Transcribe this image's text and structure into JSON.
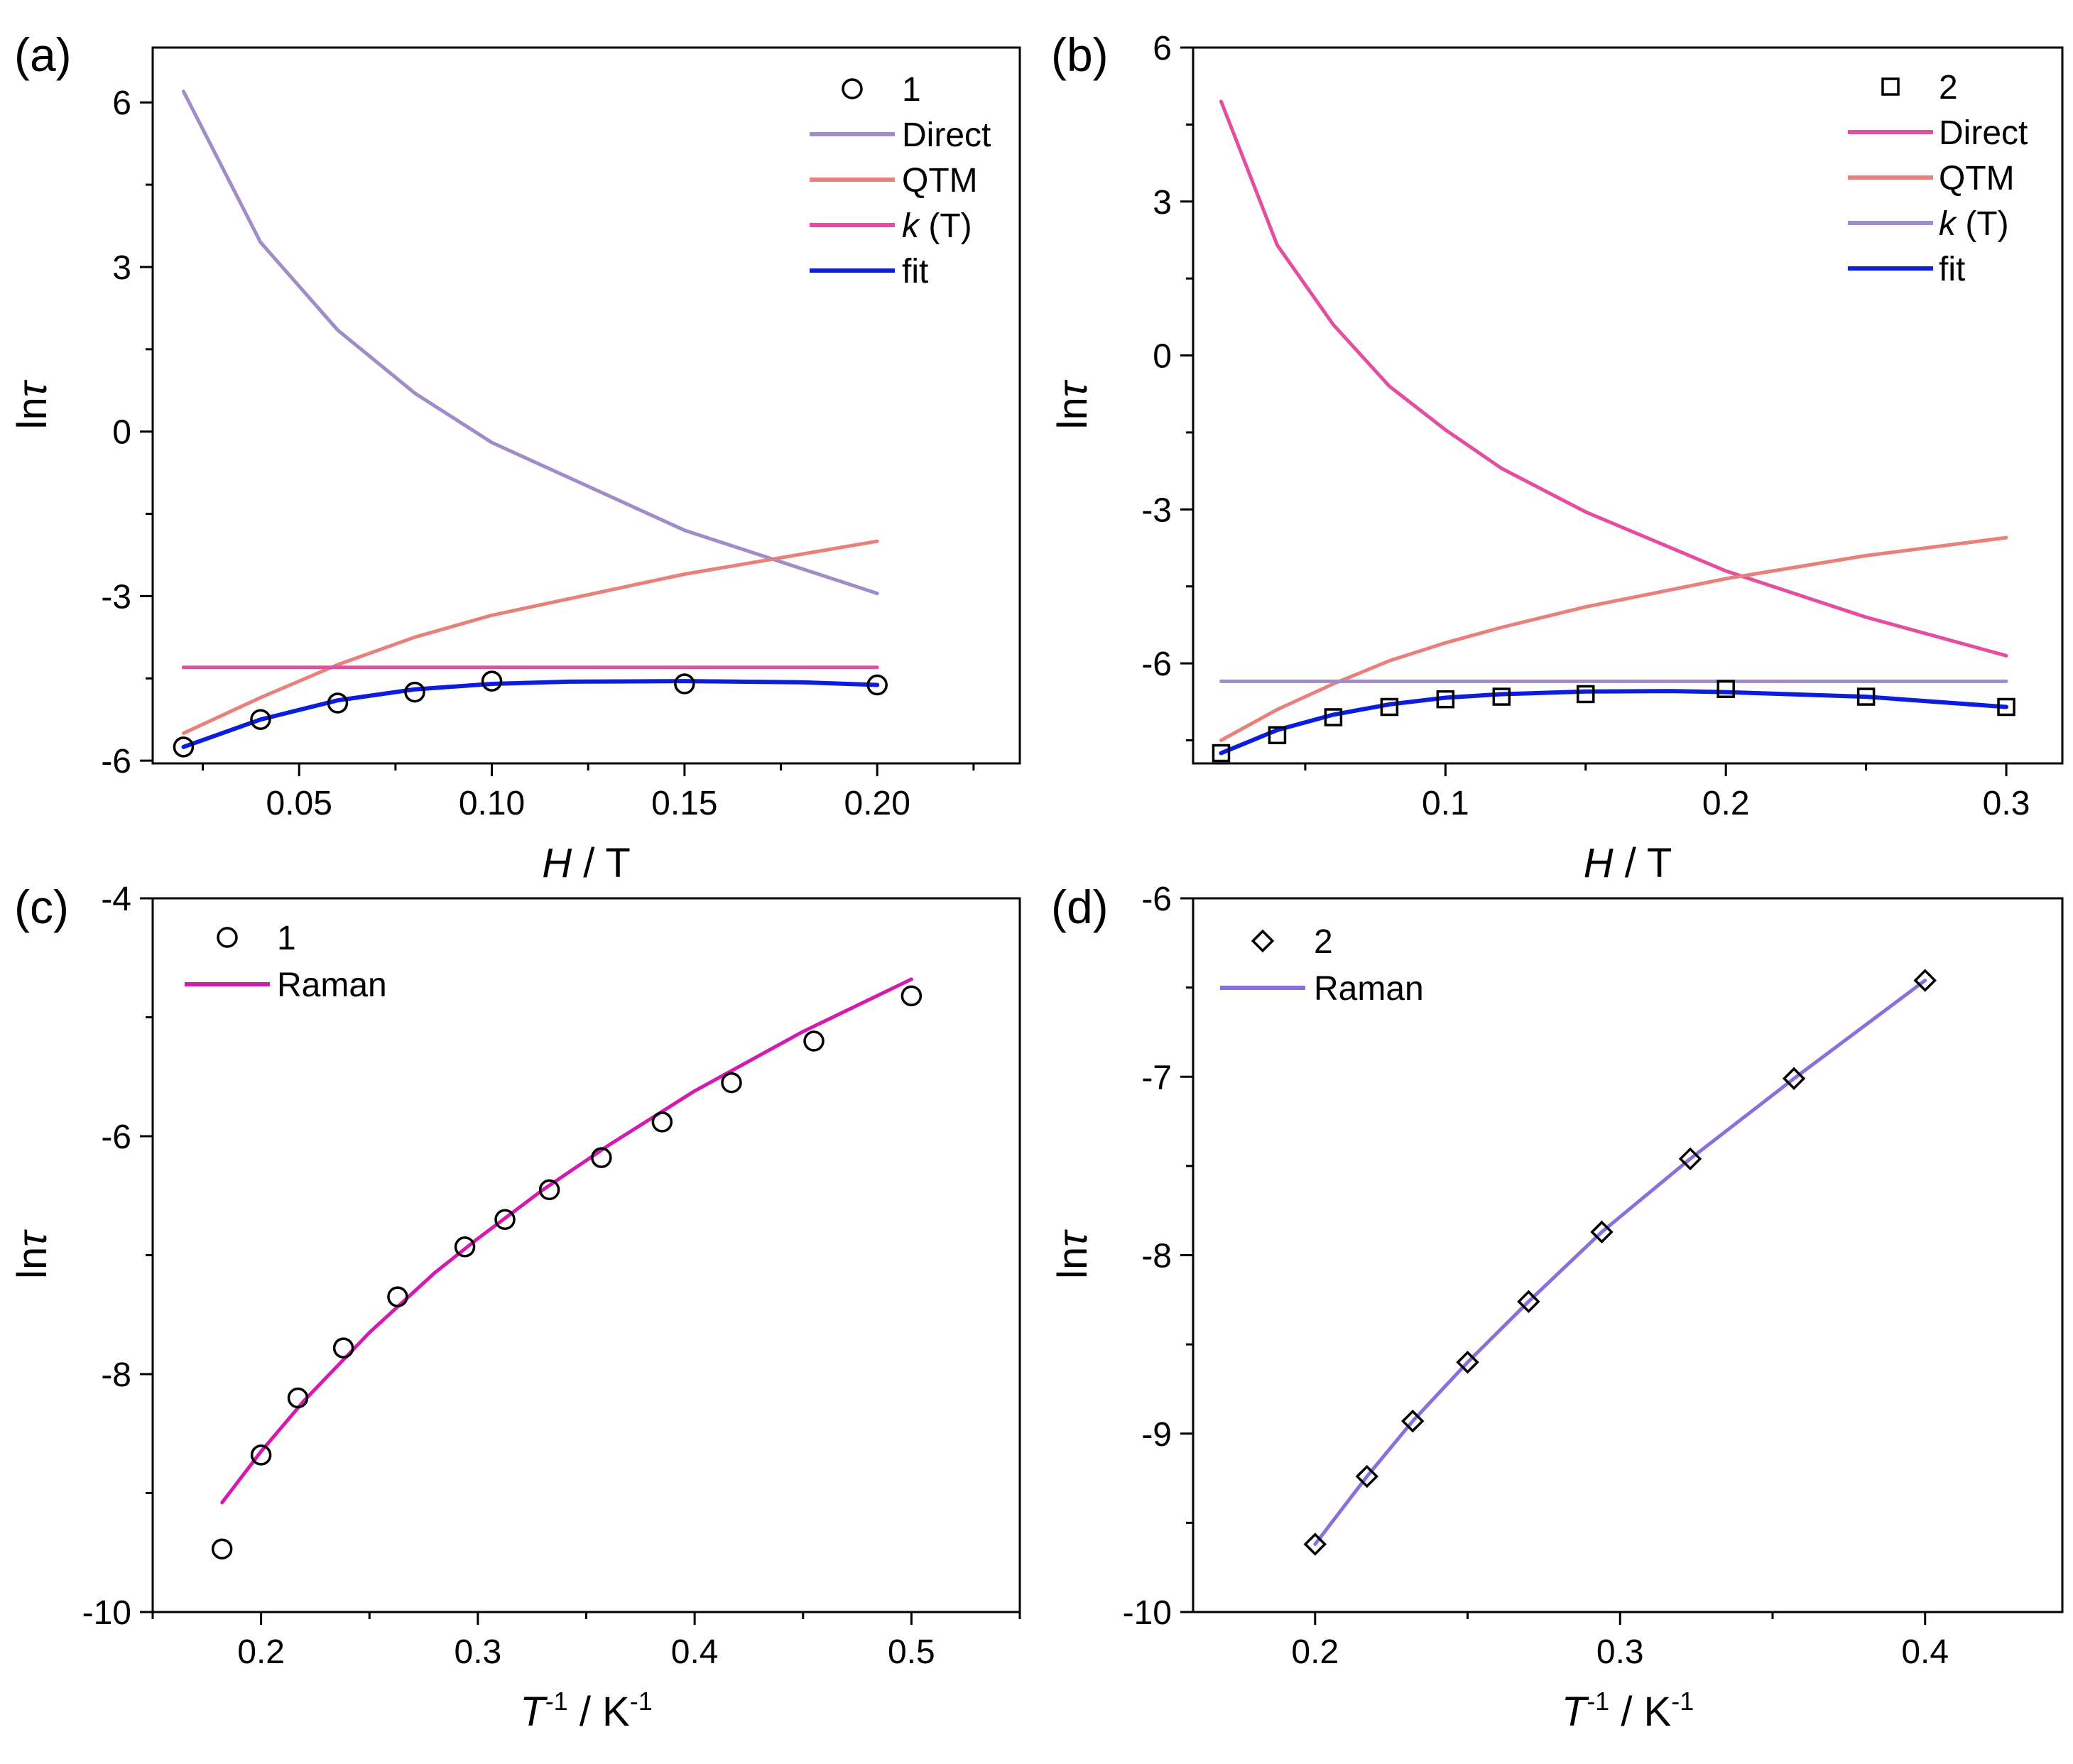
{
  "chart_data": [
    {
      "panel": "(a)",
      "type": "line",
      "xlabel": "H / T",
      "ylabel": "lnτ",
      "xlim": [
        0.012,
        0.237
      ],
      "ylim": [
        -6.05,
        7.0
      ],
      "xticks": [
        0.05,
        0.1,
        0.15,
        0.2
      ],
      "xtick_labels": [
        "0.05",
        "0.10",
        "0.15",
        "0.20"
      ],
      "yticks": [
        -6,
        -3,
        0,
        3,
        6
      ],
      "ytick_labels": [
        "-6",
        "-3",
        "0",
        "3",
        "6"
      ],
      "legend_position": "top-right",
      "series": [
        {
          "name": "1",
          "kind": "marker",
          "marker": "circle",
          "color": "#000000",
          "x": [
            0.02,
            0.04,
            0.06,
            0.08,
            0.1,
            0.15,
            0.2
          ],
          "y": [
            -5.75,
            -5.25,
            -4.95,
            -4.75,
            -4.55,
            -4.6,
            -4.62
          ]
        },
        {
          "name": "Direct",
          "kind": "line",
          "color": "#a08cc8",
          "x": [
            0.02,
            0.04,
            0.06,
            0.08,
            0.1,
            0.15,
            0.2
          ],
          "y": [
            6.2,
            3.45,
            1.85,
            0.7,
            -0.2,
            -1.8,
            -2.95
          ]
        },
        {
          "name": "QTM",
          "kind": "line",
          "color": "#e8807c",
          "x": [
            0.02,
            0.04,
            0.06,
            0.08,
            0.1,
            0.15,
            0.2
          ],
          "y": [
            -5.5,
            -4.85,
            -4.25,
            -3.75,
            -3.35,
            -2.6,
            -2.0
          ]
        },
        {
          "name": "k (T)",
          "kind": "line",
          "color": "#e34ea0",
          "x": [
            0.02,
            0.2
          ],
          "y": [
            -4.3,
            -4.3
          ]
        },
        {
          "name": "fit",
          "kind": "line",
          "color": "#0b1ee0",
          "x": [
            0.02,
            0.04,
            0.06,
            0.08,
            0.1,
            0.12,
            0.15,
            0.18,
            0.2
          ],
          "y": [
            -5.75,
            -5.25,
            -4.9,
            -4.7,
            -4.6,
            -4.56,
            -4.55,
            -4.57,
            -4.62
          ]
        }
      ]
    },
    {
      "panel": "(b)",
      "type": "line",
      "xlabel": "H / T",
      "ylabel": "lnτ",
      "xlim": [
        0.01,
        0.32
      ],
      "ylim": [
        -7.95,
        6.0
      ],
      "xticks": [
        0.1,
        0.2,
        0.3
      ],
      "xtick_labels": [
        "0.1",
        "0.2",
        "0.3"
      ],
      "yticks": [
        -6,
        -3,
        0,
        3,
        6
      ],
      "ytick_labels": [
        "-6",
        "-3",
        "0",
        "3",
        "6"
      ],
      "legend_position": "top-right",
      "series": [
        {
          "name": "2",
          "kind": "marker",
          "marker": "square",
          "color": "#000000",
          "x": [
            0.02,
            0.04,
            0.06,
            0.08,
            0.1,
            0.12,
            0.15,
            0.2,
            0.25,
            0.3
          ],
          "y": [
            -7.75,
            -7.4,
            -7.05,
            -6.85,
            -6.7,
            -6.65,
            -6.6,
            -6.5,
            -6.65,
            -6.85
          ]
        },
        {
          "name": "Direct",
          "kind": "line",
          "color": "#e34ea0",
          "x": [
            0.02,
            0.04,
            0.06,
            0.08,
            0.1,
            0.12,
            0.15,
            0.2,
            0.25,
            0.3
          ],
          "y": [
            4.95,
            2.15,
            0.6,
            -0.6,
            -1.45,
            -2.2,
            -3.05,
            -4.2,
            -5.1,
            -5.85
          ]
        },
        {
          "name": "QTM",
          "kind": "line",
          "color": "#e8807c",
          "x": [
            0.02,
            0.04,
            0.06,
            0.08,
            0.1,
            0.12,
            0.15,
            0.2,
            0.25,
            0.3
          ],
          "y": [
            -7.5,
            -6.9,
            -6.4,
            -5.95,
            -5.6,
            -5.3,
            -4.9,
            -4.35,
            -3.9,
            -3.55
          ]
        },
        {
          "name": "k (T)",
          "kind": "line",
          "color": "#a08cc8",
          "x": [
            0.02,
            0.3
          ],
          "y": [
            -6.35,
            -6.35
          ]
        },
        {
          "name": "fit",
          "kind": "line",
          "color": "#0b1ee0",
          "x": [
            0.02,
            0.04,
            0.06,
            0.08,
            0.1,
            0.12,
            0.15,
            0.18,
            0.2,
            0.25,
            0.3
          ],
          "y": [
            -7.75,
            -7.3,
            -7.0,
            -6.8,
            -6.67,
            -6.6,
            -6.55,
            -6.54,
            -6.56,
            -6.65,
            -6.85
          ]
        }
      ]
    },
    {
      "panel": "(c)",
      "type": "scatter",
      "xlabel": "T-1 / K-1",
      "ylabel": "lnτ",
      "xlim": [
        0.15,
        0.55
      ],
      "ylim": [
        -10,
        -4
      ],
      "xticks": [
        0.2,
        0.3,
        0.4,
        0.5
      ],
      "xtick_labels": [
        "0.2",
        "0.3",
        "0.4",
        "0.5"
      ],
      "yticks": [
        -10,
        -8,
        -6,
        -4
      ],
      "ytick_labels": [
        "-10",
        "-8",
        "-6",
        "-4"
      ],
      "legend_position": "top-left",
      "series": [
        {
          "name": "1",
          "kind": "marker",
          "marker": "circle",
          "color": "#000000",
          "x": [
            0.182,
            0.2,
            0.217,
            0.238,
            0.263,
            0.294,
            0.3125,
            0.333,
            0.357,
            0.385,
            0.417,
            0.455,
            0.5
          ],
          "y": [
            -9.47,
            -8.68,
            -8.2,
            -7.78,
            -7.35,
            -6.93,
            -6.7,
            -6.45,
            -6.18,
            -5.88,
            -5.55,
            -5.2,
            -4.82
          ]
        },
        {
          "name": "Raman",
          "kind": "line",
          "color": "#d41ab0",
          "x": [
            0.182,
            0.2,
            0.22,
            0.25,
            0.28,
            0.3,
            0.33,
            0.36,
            0.4,
            0.45,
            0.5
          ],
          "y": [
            -9.08,
            -8.65,
            -8.22,
            -7.65,
            -7.15,
            -6.86,
            -6.45,
            -6.08,
            -5.62,
            -5.12,
            -4.68
          ]
        }
      ]
    },
    {
      "panel": "(d)",
      "type": "scatter",
      "xlabel": "T-1 / K-1",
      "ylabel": "lnτ",
      "xlim": [
        0.16,
        0.445
      ],
      "ylim": [
        -10,
        -6
      ],
      "xticks": [
        0.2,
        0.3,
        0.4
      ],
      "xtick_labels": [
        "0.2",
        "0.3",
        "0.4"
      ],
      "yticks": [
        -10,
        -9,
        -8,
        -7,
        -6
      ],
      "ytick_labels": [
        "-10",
        "-9",
        "-8",
        "-7",
        "-6"
      ],
      "legend_position": "top-left",
      "series": [
        {
          "name": "2",
          "kind": "marker",
          "marker": "diamond",
          "color": "#000000",
          "x": [
            0.2,
            0.217,
            0.232,
            0.25,
            0.27,
            0.294,
            0.323,
            0.357,
            0.4
          ],
          "y": [
            -9.62,
            -9.24,
            -8.93,
            -8.6,
            -8.26,
            -7.87,
            -7.46,
            -7.01,
            -6.46
          ]
        },
        {
          "name": "Raman",
          "kind": "line",
          "color": "#8a70dc",
          "x": [
            0.2,
            0.217,
            0.232,
            0.25,
            0.27,
            0.294,
            0.323,
            0.357,
            0.4
          ],
          "y": [
            -9.62,
            -9.24,
            -8.93,
            -8.6,
            -8.26,
            -7.87,
            -7.46,
            -7.01,
            -6.46
          ]
        }
      ]
    }
  ],
  "panels": [
    {
      "label": "(a)",
      "y_title": "ln",
      "y_title_symbol": "τ",
      "x_title_main": "H",
      "x_title_rest": " / T",
      "x_title_sup1": "",
      "x_title_mid": "",
      "x_title_sup2": "",
      "legend": [
        {
          "text": "1"
        },
        {
          "text": "Direct"
        },
        {
          "text": "QTM"
        },
        {
          "text_italic": "k",
          "text": " (T)"
        },
        {
          "text": "fit"
        }
      ]
    },
    {
      "label": "(b)",
      "y_title": "ln",
      "y_title_symbol": "τ",
      "x_title_main": "H",
      "x_title_rest": " / T",
      "x_title_sup1": "",
      "x_title_mid": "",
      "x_title_sup2": "",
      "legend": [
        {
          "text": "2"
        },
        {
          "text": "Direct"
        },
        {
          "text": "QTM"
        },
        {
          "text_italic": "k",
          "text": " (T)"
        },
        {
          "text": "fit"
        }
      ]
    },
    {
      "label": "(c)",
      "y_title": "ln",
      "y_title_symbol": "τ",
      "x_title_main": "T",
      "x_title_rest": "",
      "x_title_sup1": "-1",
      "x_title_mid": " / K",
      "x_title_sup2": "-1",
      "legend": [
        {
          "text": "1"
        },
        {
          "text": "Raman"
        }
      ]
    },
    {
      "label": "(d)",
      "y_title": "ln",
      "y_title_symbol": "τ",
      "x_title_main": "T",
      "x_title_rest": "",
      "x_title_sup1": "-1",
      "x_title_mid": " / K",
      "x_title_sup2": "-1",
      "legend": [
        {
          "text": "2"
        },
        {
          "text": "Raman"
        }
      ]
    }
  ]
}
